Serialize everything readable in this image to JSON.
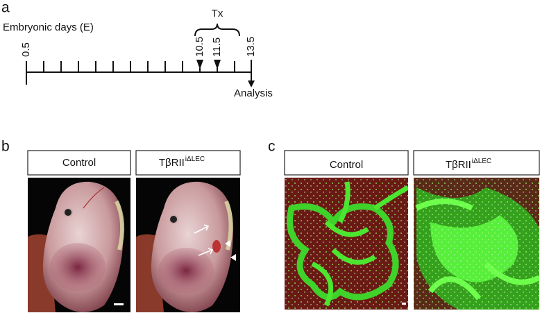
{
  "panel_a": {
    "label": "a",
    "axis_title": "Embryonic days (E)",
    "treatment": "Tx",
    "ticks": [
      "0.5",
      "10.5",
      "11.5",
      "13.5"
    ],
    "endpoint": "Analysis"
  },
  "panel_b": {
    "label": "b",
    "columns": [
      {
        "title": "Control"
      },
      {
        "title": "TβRII",
        "superscript": "iΔLEC"
      }
    ]
  },
  "panel_c": {
    "label": "c",
    "columns": [
      {
        "title": "Control"
      },
      {
        "title": "TβRII",
        "superscript": "iΔLEC"
      }
    ]
  }
}
